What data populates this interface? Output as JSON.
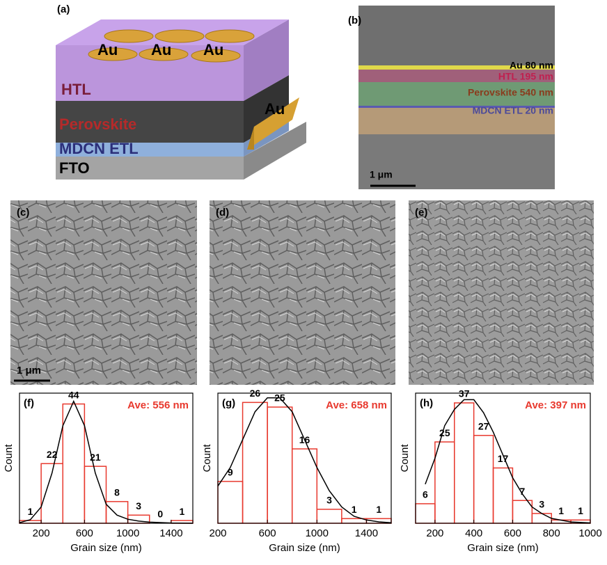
{
  "panel_a": {
    "label": "(a)",
    "electrodes": [
      "Au",
      "Au",
      "Au",
      "Au"
    ],
    "layers": [
      "HTL",
      "Perovskite",
      "MDCN ETL",
      "FTO"
    ]
  },
  "panel_b": {
    "label": "(b)",
    "layers": [
      "Au 80 nm",
      "HTL 195 nm",
      "Perovskite 540 nm",
      "MDCN ETL 20 nm"
    ],
    "scale_bar": "1 μm"
  },
  "sem_panels": [
    {
      "label": "(c)",
      "scale_bar": "1 μm"
    },
    {
      "label": "(d)"
    },
    {
      "label": "(e)"
    }
  ],
  "chart_data": [
    {
      "type": "histogram",
      "label": "(f)",
      "annotation": "Ave: 556 nm",
      "x_label": "Grain size (nm)",
      "y_label": "Count",
      "bins": [
        0,
        200,
        400,
        600,
        800,
        1000,
        1200,
        1400,
        1600
      ],
      "values": [
        1,
        22,
        44,
        21,
        8,
        3,
        0,
        1
      ],
      "color": "#e8392e",
      "xlim": [
        0,
        1600
      ],
      "ylim": [
        0,
        48
      ],
      "xticks": [
        200,
        600,
        1000,
        1400
      ],
      "fit": {
        "x": [
          0,
          100,
          200,
          300,
          400,
          500,
          600,
          700,
          800,
          900,
          1000,
          1100,
          1200,
          1400,
          1600
        ],
        "values": [
          0.2,
          1.3,
          6,
          18.5,
          36,
          45,
          36,
          18.5,
          7,
          3,
          1.5,
          0.8,
          0.4,
          0.1,
          0
        ],
        "color": "#000000"
      }
    },
    {
      "type": "histogram",
      "label": "(g)",
      "annotation": "Ave: 658 nm",
      "x_label": "Grain size (nm)",
      "y_label": "Count",
      "bins": [
        200,
        400,
        600,
        800,
        1000,
        1200,
        1400,
        1600
      ],
      "values": [
        9,
        26,
        25,
        16,
        3,
        1,
        1
      ],
      "color": "#e8392e",
      "xlim": [
        200,
        1600
      ],
      "ylim": [
        0,
        28
      ],
      "xticks": [
        200,
        600,
        1000,
        1400
      ],
      "fit": {
        "x": [
          200,
          300,
          400,
          500,
          600,
          700,
          800,
          900,
          1000,
          1100,
          1200,
          1300,
          1400,
          1500,
          1600
        ],
        "values": [
          8,
          12,
          18,
          24,
          27,
          27,
          24,
          18,
          12,
          7,
          3.5,
          1.5,
          0.7,
          0.3,
          0.1
        ],
        "color": "#000000"
      }
    },
    {
      "type": "histogram",
      "label": "(h)",
      "annotation": "Ave: 397 nm",
      "x_label": "Grain size (nm)",
      "y_label": "Count",
      "bins": [
        100,
        200,
        300,
        400,
        500,
        600,
        700,
        800,
        900,
        1000
      ],
      "values": [
        6,
        25,
        37,
        27,
        17,
        7,
        3,
        1,
        1
      ],
      "color": "#e8392e",
      "xlim": [
        100,
        1000
      ],
      "ylim": [
        0,
        40
      ],
      "xticks": [
        200,
        400,
        600,
        800,
        1000
      ],
      "fit": {
        "x": [
          150,
          200,
          250,
          300,
          350,
          400,
          450,
          500,
          550,
          600,
          650,
          700,
          750,
          800,
          900,
          1000
        ],
        "values": [
          12,
          20,
          30,
          35,
          38,
          38,
          34,
          28,
          21,
          14,
          9,
          5,
          3,
          1.5,
          0.4,
          0.1
        ],
        "color": "#000000"
      }
    }
  ]
}
